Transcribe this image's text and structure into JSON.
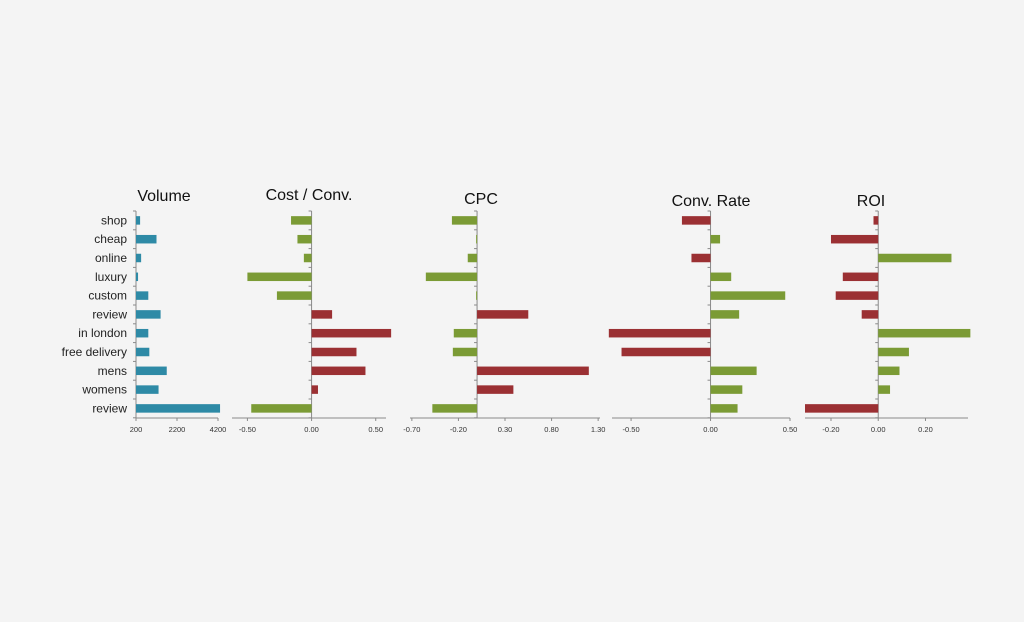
{
  "colors": {
    "volume": "#2e8aa6",
    "positive": "#7b9b35",
    "negative": "#9b3033"
  },
  "chart_data": {
    "type": "bar",
    "orientation": "horizontal",
    "categories": [
      "shop",
      "cheap",
      "online",
      "luxury",
      "custom",
      "review",
      "in london",
      "free delivery",
      "mens",
      "womens",
      "review"
    ],
    "panels": [
      {
        "title": "Volume",
        "color_mode": "volume",
        "xlim": [
          200,
          4200
        ],
        "ticks": [
          200,
          2200,
          4200
        ],
        "tick_labels": [
          "200",
          "2200",
          "4200"
        ],
        "values": [
          400,
          1200,
          450,
          300,
          800,
          1400,
          800,
          850,
          1700,
          1300,
          4300
        ]
      },
      {
        "title": "Cost / Conv.",
        "color_mode": "inverse",
        "xlim": [
          -0.62,
          0.58
        ],
        "ticks": [
          -0.5,
          0,
          0.5
        ],
        "tick_labels": [
          "-0.50",
          "0.00",
          "0.50"
        ],
        "values": [
          -0.16,
          -0.11,
          -0.06,
          -0.5,
          -0.27,
          0.16,
          0.62,
          0.35,
          0.42,
          0.05,
          -0.47
        ]
      },
      {
        "title": "CPC",
        "color_mode": "inverse",
        "xlim": [
          -0.72,
          1.32
        ],
        "ticks": [
          -0.7,
          -0.2,
          0.3,
          0.8,
          1.3
        ],
        "tick_labels": [
          "-0.70",
          "-0.20",
          "0.30",
          "0.80",
          "1.30"
        ],
        "values": [
          -0.27,
          -0.01,
          -0.1,
          -0.55,
          -0.01,
          0.55,
          -0.25,
          -0.26,
          1.2,
          0.39,
          -0.48
        ]
      },
      {
        "title": "Conv. Rate",
        "color_mode": "direct",
        "xlim": [
          -0.62,
          0.5
        ],
        "ticks": [
          -0.5,
          0,
          0.5
        ],
        "tick_labels": [
          "-0.50",
          "0.00",
          "0.50"
        ],
        "values": [
          -0.18,
          0.06,
          -0.12,
          0.13,
          0.47,
          0.18,
          -0.64,
          -0.56,
          0.29,
          0.2,
          0.17
        ]
      },
      {
        "title": "ROI",
        "color_mode": "direct",
        "xlim": [
          -0.31,
          0.38
        ],
        "ticks": [
          -0.2,
          0,
          0.2
        ],
        "tick_labels": [
          "-0.20",
          "0.00",
          "0.20"
        ],
        "values": [
          -0.02,
          -0.2,
          0.31,
          -0.15,
          -0.18,
          -0.07,
          0.39,
          0.13,
          0.09,
          0.05,
          -0.31
        ]
      }
    ]
  }
}
